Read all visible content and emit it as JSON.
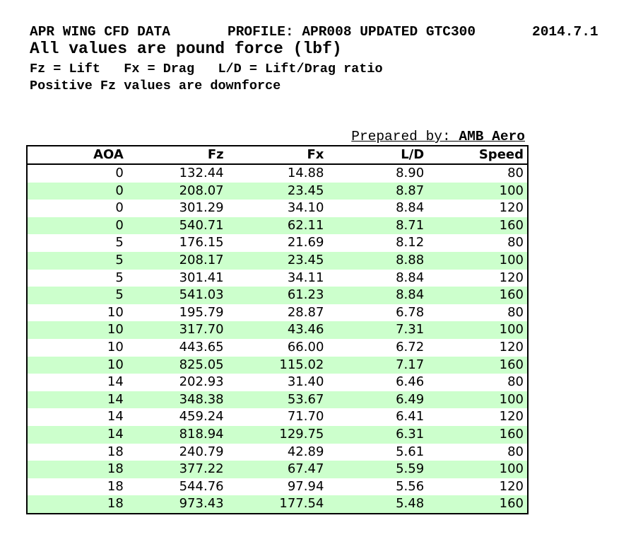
{
  "header": {
    "title": "APR WING CFD DATA",
    "profile": "PROFILE: APR008 UPDATED GTC300",
    "date": "2014.7.1",
    "subtitle": "All values are pound force (lbf)",
    "legend": "Fz = Lift   Fx = Drag   L/D = Lift/Drag ratio",
    "note": "Positive Fz values are downforce"
  },
  "prepared_by": {
    "label": "Prepared by: ",
    "value": "AMB Aero"
  },
  "table": {
    "columns": [
      "AOA",
      "Fz",
      "Fx",
      "L/D",
      "Speed"
    ],
    "rows": [
      [
        "0",
        "132.44",
        "14.88",
        "8.90",
        "80"
      ],
      [
        "0",
        "208.07",
        "23.45",
        "8.87",
        "100"
      ],
      [
        "0",
        "301.29",
        "34.10",
        "8.84",
        "120"
      ],
      [
        "0",
        "540.71",
        "62.11",
        "8.71",
        "160"
      ],
      [
        "5",
        "176.15",
        "21.69",
        "8.12",
        "80"
      ],
      [
        "5",
        "208.17",
        "23.45",
        "8.88",
        "100"
      ],
      [
        "5",
        "301.41",
        "34.11",
        "8.84",
        "120"
      ],
      [
        "5",
        "541.03",
        "61.23",
        "8.84",
        "160"
      ],
      [
        "10",
        "195.79",
        "28.87",
        "6.78",
        "80"
      ],
      [
        "10",
        "317.70",
        "43.46",
        "7.31",
        "100"
      ],
      [
        "10",
        "443.65",
        "66.00",
        "6.72",
        "120"
      ],
      [
        "10",
        "825.05",
        "115.02",
        "7.17",
        "160"
      ],
      [
        "14",
        "202.93",
        "31.40",
        "6.46",
        "80"
      ],
      [
        "14",
        "348.38",
        "53.67",
        "6.49",
        "100"
      ],
      [
        "14",
        "459.24",
        "71.70",
        "6.41",
        "120"
      ],
      [
        "14",
        "818.94",
        "129.75",
        "6.31",
        "160"
      ],
      [
        "18",
        "240.79",
        "42.89",
        "5.61",
        "80"
      ],
      [
        "18",
        "377.22",
        "67.47",
        "5.59",
        "100"
      ],
      [
        "18",
        "544.76",
        "97.94",
        "5.56",
        "120"
      ],
      [
        "18",
        "973.43",
        "177.54",
        "5.48",
        "160"
      ]
    ]
  },
  "colors": {
    "row_stripe": "#ccffcc",
    "border": "#000000",
    "text": "#000000"
  },
  "chart_data": {
    "type": "table",
    "title": "APR WING CFD DATA",
    "columns": [
      "AOA",
      "Fz",
      "Fx",
      "L/D",
      "Speed"
    ],
    "rows": [
      [
        0,
        132.44,
        14.88,
        8.9,
        80
      ],
      [
        0,
        208.07,
        23.45,
        8.87,
        100
      ],
      [
        0,
        301.29,
        34.1,
        8.84,
        120
      ],
      [
        0,
        540.71,
        62.11,
        8.71,
        160
      ],
      [
        5,
        176.15,
        21.69,
        8.12,
        80
      ],
      [
        5,
        208.17,
        23.45,
        8.88,
        100
      ],
      [
        5,
        301.41,
        34.11,
        8.84,
        120
      ],
      [
        5,
        541.03,
        61.23,
        8.84,
        160
      ],
      [
        10,
        195.79,
        28.87,
        6.78,
        80
      ],
      [
        10,
        317.7,
        43.46,
        7.31,
        100
      ],
      [
        10,
        443.65,
        66.0,
        6.72,
        120
      ],
      [
        10,
        825.05,
        115.02,
        7.17,
        160
      ],
      [
        14,
        202.93,
        31.4,
        6.46,
        80
      ],
      [
        14,
        348.38,
        53.67,
        6.49,
        100
      ],
      [
        14,
        459.24,
        71.7,
        6.41,
        120
      ],
      [
        14,
        818.94,
        129.75,
        6.31,
        160
      ],
      [
        18,
        240.79,
        42.89,
        5.61,
        80
      ],
      [
        18,
        377.22,
        67.47,
        5.59,
        100
      ],
      [
        18,
        544.76,
        97.94,
        5.56,
        120
      ],
      [
        18,
        973.43,
        177.54,
        5.48,
        160
      ]
    ]
  }
}
